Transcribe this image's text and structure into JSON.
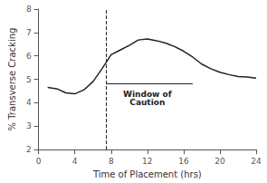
{
  "chart_data": {
    "type": "line",
    "x": [
      1,
      2,
      3,
      4,
      5,
      6,
      7,
      8,
      9,
      10,
      11,
      12,
      13,
      14,
      15,
      16,
      17,
      18,
      19,
      20,
      21,
      22,
      23,
      24
    ],
    "values": [
      4.65,
      4.6,
      4.42,
      4.38,
      4.55,
      4.9,
      5.45,
      6.05,
      6.25,
      6.45,
      6.68,
      6.72,
      6.65,
      6.55,
      6.4,
      6.2,
      5.95,
      5.65,
      5.45,
      5.3,
      5.2,
      5.12,
      5.1,
      5.05
    ],
    "color": "#222222",
    "xlabel": "Time of Placement (hrs)",
    "ylabel": "% Transverse Cracking",
    "xlim": [
      0,
      24
    ],
    "ylim": [
      2,
      8
    ],
    "xticks": [
      0,
      4,
      8,
      12,
      16,
      20,
      24
    ],
    "yticks": [
      2,
      3,
      4,
      5,
      6,
      7,
      8
    ],
    "grid": false,
    "vlines": [
      {
        "x": 7.5,
        "line_style": "dashed"
      }
    ],
    "hlines": [
      {
        "y": 4.82,
        "x_start": 7.5,
        "x_end": 17
      }
    ],
    "annotations": [
      {
        "text": "Window of\nCaution",
        "x": 12,
        "y": 4.55
      }
    ]
  }
}
